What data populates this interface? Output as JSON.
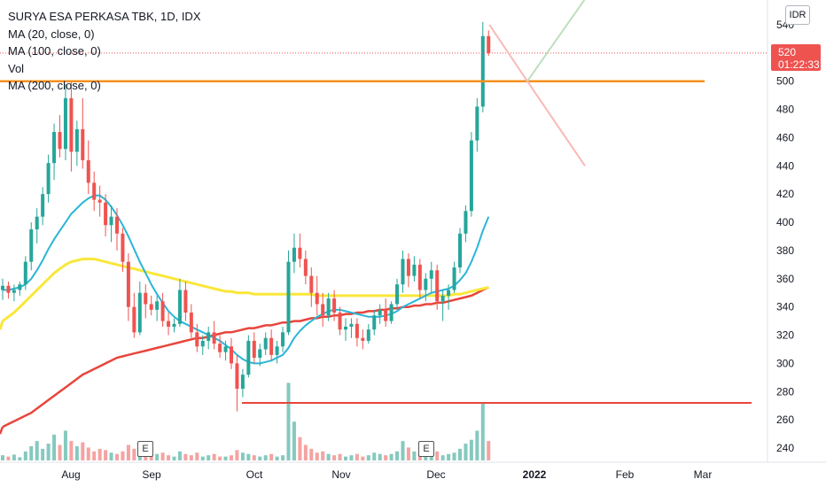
{
  "legend": {
    "title": "SURYA ESA PERKASA TBK, 1D, IDX",
    "ma20": "MA (20, close, 0)",
    "ma100": "MA (100, close, 0)",
    "vol": "Vol",
    "ma200": "MA (200, close, 0)"
  },
  "scale_badge": "IDR",
  "last_price": {
    "value": "520",
    "countdown": "01:22:33"
  },
  "earnings_marker": "E",
  "colors": {
    "up": "#26a69a",
    "down": "#ef5350",
    "up_vol": "#85c9bf",
    "down_vol": "#f4a3a1",
    "ma20": "#29b6d6",
    "ma100": "#f9e73a",
    "ma200": "#e8453c",
    "resistance": "#f5901e",
    "support": "#e8453c",
    "proj_up": "#bfdec0",
    "proj_down": "#f8b9b7"
  },
  "chart_data": {
    "type": "candlestick",
    "title": "SURYA ESA PERKASA TBK, 1D, IDX",
    "xlabel": "",
    "ylabel": "",
    "y_ticks": [
      540,
      520,
      500,
      480,
      460,
      440,
      420,
      400,
      380,
      360,
      340,
      320,
      300,
      280,
      260,
      240
    ],
    "x_ticks": [
      "Aug",
      "Sep",
      "Oct",
      "Nov",
      "Dec",
      "2022",
      "Feb",
      "Mar"
    ],
    "ylim": [
      232,
      548
    ],
    "grid": false,
    "horizontal_levels": [
      {
        "name": "resistance",
        "price": 500
      },
      {
        "name": "support",
        "price": 272
      }
    ],
    "projection": {
      "start_price": 540,
      "pivot_price": 500,
      "up_end_price": 560,
      "down_end_price": 440
    },
    "candles": [
      [
        352,
        360,
        345,
        355
      ],
      [
        355,
        358,
        346,
        350
      ],
      [
        350,
        356,
        344,
        352
      ],
      [
        352,
        358,
        348,
        356
      ],
      [
        356,
        376,
        352,
        372
      ],
      [
        372,
        400,
        366,
        395
      ],
      [
        395,
        410,
        385,
        404
      ],
      [
        404,
        425,
        398,
        420
      ],
      [
        420,
        448,
        414,
        442
      ],
      [
        442,
        470,
        430,
        464
      ],
      [
        464,
        476,
        446,
        452
      ],
      [
        452,
        498,
        444,
        488
      ],
      [
        488,
        500,
        436,
        450
      ],
      [
        450,
        472,
        440,
        466
      ],
      [
        466,
        488,
        438,
        444
      ],
      [
        444,
        458,
        420,
        428
      ],
      [
        428,
        436,
        408,
        416
      ],
      [
        416,
        426,
        404,
        414
      ],
      [
        414,
        420,
        390,
        398
      ],
      [
        398,
        412,
        386,
        404
      ],
      [
        404,
        410,
        380,
        392
      ],
      [
        392,
        396,
        365,
        372
      ],
      [
        372,
        378,
        330,
        340
      ],
      [
        340,
        350,
        318,
        322
      ],
      [
        322,
        358,
        320,
        350
      ],
      [
        350,
        356,
        332,
        342
      ],
      [
        342,
        348,
        334,
        338
      ],
      [
        338,
        348,
        330,
        344
      ],
      [
        344,
        350,
        326,
        330
      ],
      [
        330,
        336,
        320,
        326
      ],
      [
        326,
        332,
        322,
        328
      ],
      [
        328,
        360,
        326,
        352
      ],
      [
        352,
        358,
        330,
        336
      ],
      [
        336,
        342,
        318,
        322
      ],
      [
        322,
        328,
        308,
        312
      ],
      [
        312,
        320,
        306,
        316
      ],
      [
        316,
        326,
        310,
        322
      ],
      [
        322,
        330,
        310,
        314
      ],
      [
        314,
        320,
        304,
        308
      ],
      [
        308,
        316,
        302,
        312
      ],
      [
        312,
        318,
        296,
        300
      ],
      [
        300,
        306,
        266,
        282
      ],
      [
        282,
        296,
        276,
        292
      ],
      [
        292,
        320,
        290,
        316
      ],
      [
        316,
        322,
        300,
        304
      ],
      [
        304,
        314,
        298,
        310
      ],
      [
        310,
        322,
        306,
        318
      ],
      [
        318,
        324,
        302,
        306
      ],
      [
        306,
        316,
        300,
        312
      ],
      [
        312,
        326,
        308,
        322
      ],
      [
        322,
        380,
        320,
        372
      ],
      [
        372,
        392,
        364,
        382
      ],
      [
        382,
        392,
        368,
        374
      ],
      [
        374,
        380,
        356,
        362
      ],
      [
        362,
        368,
        340,
        350
      ],
      [
        350,
        362,
        334,
        342
      ],
      [
        342,
        350,
        326,
        334
      ],
      [
        334,
        350,
        330,
        346
      ],
      [
        346,
        352,
        330,
        336
      ],
      [
        336,
        340,
        320,
        324
      ],
      [
        324,
        332,
        316,
        326
      ],
      [
        326,
        332,
        318,
        328
      ],
      [
        328,
        332,
        312,
        318
      ],
      [
        318,
        324,
        310,
        316
      ],
      [
        316,
        328,
        314,
        324
      ],
      [
        324,
        338,
        320,
        334
      ],
      [
        334,
        342,
        328,
        338
      ],
      [
        338,
        346,
        326,
        330
      ],
      [
        330,
        344,
        328,
        342
      ],
      [
        342,
        360,
        338,
        356
      ],
      [
        356,
        380,
        350,
        374
      ],
      [
        374,
        378,
        354,
        362
      ],
      [
        362,
        376,
        358,
        370
      ],
      [
        370,
        374,
        346,
        352
      ],
      [
        352,
        364,
        344,
        360
      ],
      [
        360,
        372,
        350,
        366
      ],
      [
        366,
        370,
        338,
        344
      ],
      [
        344,
        352,
        330,
        348
      ],
      [
        348,
        356,
        338,
        352
      ],
      [
        352,
        372,
        350,
        368
      ],
      [
        368,
        396,
        364,
        392
      ],
      [
        392,
        412,
        386,
        408
      ],
      [
        408,
        464,
        404,
        458
      ],
      [
        458,
        488,
        450,
        482
      ],
      [
        482,
        542,
        478,
        532
      ],
      [
        532,
        536,
        518,
        520
      ]
    ],
    "volumes": [
      8,
      6,
      9,
      5,
      14,
      22,
      30,
      18,
      26,
      40,
      24,
      46,
      30,
      22,
      28,
      20,
      14,
      18,
      16,
      12,
      10,
      14,
      24,
      18,
      12,
      10,
      8,
      10,
      12,
      8,
      6,
      14,
      10,
      8,
      12,
      6,
      8,
      10,
      6,
      6,
      8,
      16,
      12,
      10,
      8,
      6,
      8,
      10,
      6,
      8,
      120,
      60,
      36,
      24,
      18,
      12,
      14,
      10,
      8,
      10,
      6,
      8,
      10,
      6,
      8,
      12,
      10,
      8,
      10,
      14,
      30,
      20,
      14,
      12,
      10,
      8,
      14,
      8,
      10,
      12,
      18,
      26,
      32,
      46,
      90,
      30
    ],
    "ma20": [
      352,
      352,
      353,
      354,
      356,
      360,
      366,
      373,
      381,
      388,
      394,
      400,
      406,
      410,
      414,
      417,
      419,
      419,
      416,
      411,
      405,
      398,
      390,
      381,
      372,
      364,
      356,
      349,
      343,
      337,
      333,
      330,
      328,
      326,
      324,
      322,
      320,
      318,
      316,
      313,
      310,
      306,
      303,
      301,
      300,
      300,
      301,
      302,
      304,
      306,
      311,
      318,
      323,
      327,
      330,
      333,
      335,
      337,
      338,
      338,
      337,
      336,
      335,
      334,
      333,
      333,
      333,
      334,
      335,
      337,
      340,
      342,
      344,
      346,
      348,
      350,
      351,
      352,
      353,
      355,
      359,
      364,
      372,
      382,
      394,
      404
    ],
    "ma100": [
      330,
      333,
      336,
      340,
      344,
      348,
      352,
      356,
      360,
      364,
      367,
      370,
      372,
      373,
      374,
      374,
      374,
      373,
      372,
      371,
      370,
      369,
      368,
      367,
      366,
      365,
      364,
      363,
      362,
      361,
      360,
      359,
      358,
      357,
      356,
      355,
      354,
      353,
      352,
      351,
      351,
      350,
      350,
      350,
      349,
      349,
      349,
      349,
      349,
      349,
      349,
      349,
      349,
      349,
      349,
      348,
      348,
      348,
      348,
      348,
      348,
      348,
      348,
      348,
      348,
      348,
      348,
      348,
      348,
      348,
      348,
      348,
      348,
      348,
      348,
      348,
      348,
      348,
      348,
      349,
      349,
      350,
      351,
      352,
      353,
      354
    ],
    "ma200": [
      255,
      257,
      259,
      261,
      263,
      265,
      268,
      271,
      274,
      277,
      280,
      283,
      286,
      289,
      292,
      294,
      296,
      298,
      300,
      302,
      304,
      305,
      306,
      307,
      308,
      309,
      310,
      311,
      312,
      313,
      314,
      315,
      316,
      317,
      318,
      318,
      319,
      320,
      321,
      322,
      322,
      323,
      324,
      325,
      325,
      326,
      327,
      327,
      328,
      329,
      329,
      330,
      330,
      331,
      332,
      332,
      333,
      333,
      334,
      334,
      335,
      335,
      336,
      336,
      337,
      337,
      338,
      338,
      339,
      339,
      340,
      340,
      341,
      341,
      342,
      342,
      343,
      343,
      344,
      345,
      346,
      347,
      348,
      350,
      352,
      354
    ]
  }
}
